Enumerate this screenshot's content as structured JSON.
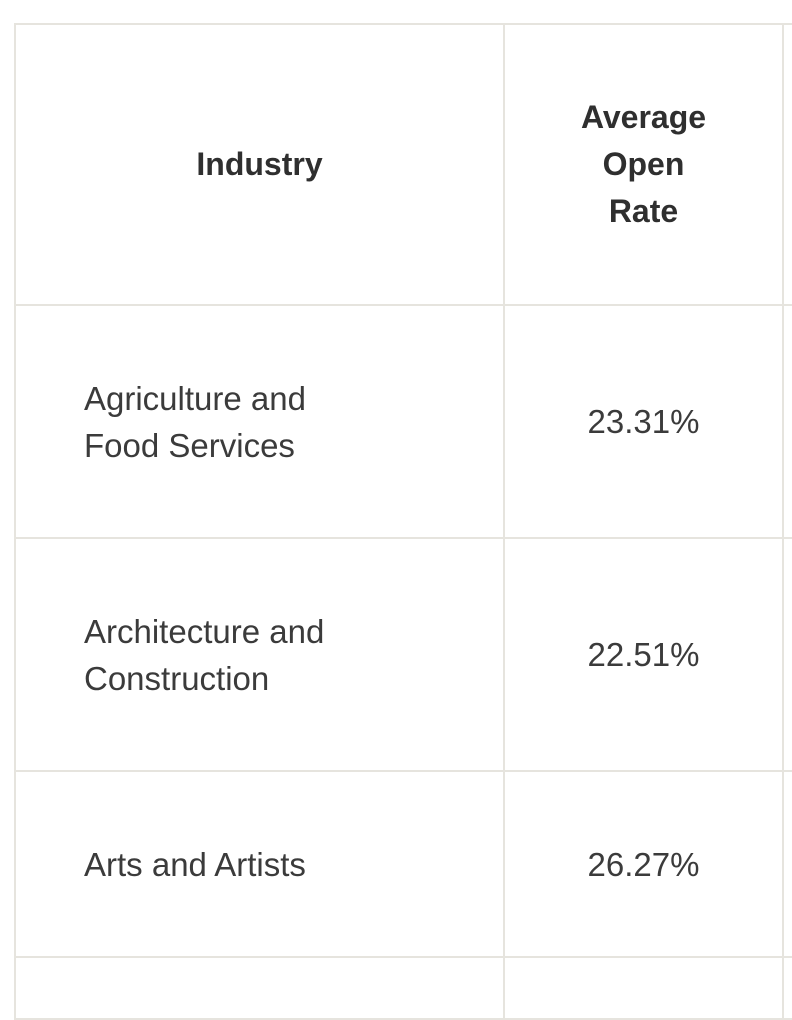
{
  "table": {
    "headers": {
      "industry": "Industry",
      "open_rate": "Average Open Rate",
      "third": ""
    },
    "rows": [
      {
        "industry": "Agriculture and Food Services",
        "open_rate": "23.31%"
      },
      {
        "industry": "Architecture and Construction",
        "open_rate": "22.51%"
      },
      {
        "industry": "Arts and Artists",
        "open_rate": "26.27%"
      }
    ]
  }
}
